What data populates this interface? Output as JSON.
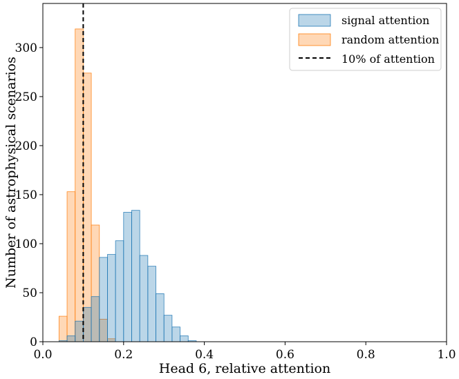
{
  "chart_data": {
    "type": "bar",
    "title": "",
    "xlabel": "Head 6, relative attention",
    "ylabel": "Number of astrophysical scenarios",
    "xlim": [
      0.0,
      1.0
    ],
    "ylim": [
      0,
      345
    ],
    "xticks": [
      0.0,
      0.2,
      0.4,
      0.6,
      0.8,
      1.0
    ],
    "xtick_labels": [
      "0.0",
      "0.2",
      "0.4",
      "0.6",
      "0.8",
      "1.0"
    ],
    "yticks": [
      0,
      50,
      100,
      150,
      200,
      250,
      300
    ],
    "ytick_labels": [
      "0",
      "50",
      "100",
      "150",
      "200",
      "250",
      "300"
    ],
    "grid": false,
    "legend_position": "top-right",
    "bin_edges": [
      0.04,
      0.06,
      0.08,
      0.1,
      0.12,
      0.14,
      0.16,
      0.18,
      0.2,
      0.22,
      0.24,
      0.26,
      0.28,
      0.3,
      0.32,
      0.34,
      0.36,
      0.38,
      0.4
    ],
    "series": [
      {
        "name": "signal attention",
        "color": "#1f77b4",
        "counts": [
          1,
          6,
          21,
          35,
          46,
          86,
          89,
          103,
          132,
          134,
          88,
          77,
          49,
          27,
          15,
          6,
          1,
          0
        ]
      },
      {
        "name": "random attention",
        "color": "#ff7f0e",
        "counts": [
          26,
          153,
          319,
          274,
          119,
          23,
          3,
          0,
          0,
          0,
          0,
          0,
          0,
          0,
          0,
          0,
          0,
          0
        ]
      }
    ],
    "reference_lines": [
      {
        "name": "10% of attention",
        "x": 0.1,
        "style": "dashed",
        "color": "#000000"
      }
    ]
  }
}
